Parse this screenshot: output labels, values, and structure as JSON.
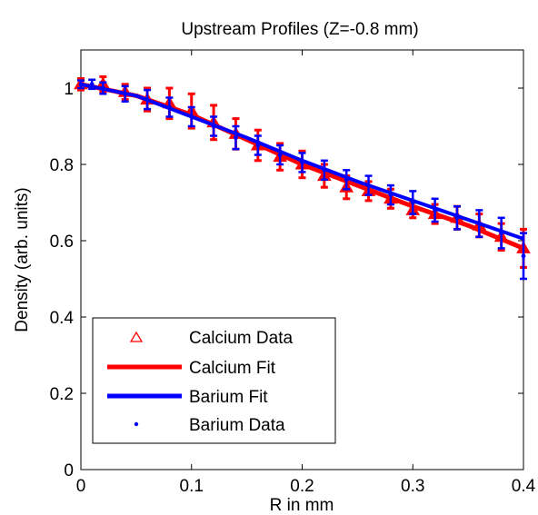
{
  "chart_data": {
    "type": "scatter",
    "title": "Upstream Profiles (Z=-0.8 mm)",
    "xlabel": "R in mm",
    "ylabel": "Density (arb. units)",
    "xlim": [
      0,
      0.4
    ],
    "ylim": [
      0,
      1.1
    ],
    "x_ticks": [
      "0",
      "0.1",
      "0.2",
      "0.3",
      "0.4"
    ],
    "y_ticks": [
      "0",
      "0.2",
      "0.4",
      "0.6",
      "0.8",
      "1"
    ],
    "grid": false,
    "legend_position": "bottom-left",
    "series": [
      {
        "name": "Calcium Data",
        "kind": "points-with-errorbars",
        "marker": "triangle-open",
        "color": "#ff0000",
        "x": [
          0.0,
          0.02,
          0.04,
          0.06,
          0.08,
          0.1,
          0.12,
          0.14,
          0.16,
          0.18,
          0.2,
          0.22,
          0.24,
          0.26,
          0.28,
          0.3,
          0.32,
          0.34,
          0.36,
          0.38,
          0.4
        ],
        "y": [
          1.01,
          1.01,
          0.99,
          0.97,
          0.96,
          0.94,
          0.91,
          0.88,
          0.85,
          0.82,
          0.8,
          0.77,
          0.74,
          0.73,
          0.71,
          0.68,
          0.67,
          0.66,
          0.64,
          0.61,
          0.58
        ],
        "err": [
          0.015,
          0.02,
          0.02,
          0.03,
          0.04,
          0.045,
          0.045,
          0.04,
          0.04,
          0.035,
          0.035,
          0.03,
          0.03,
          0.025,
          0.025,
          0.02,
          0.025,
          0.03,
          0.03,
          0.035,
          0.05
        ]
      },
      {
        "name": "Calcium Fit",
        "kind": "line",
        "color": "#ff0000",
        "x": [
          0.0,
          0.05,
          0.1,
          0.15,
          0.2,
          0.25,
          0.3,
          0.35,
          0.4
        ],
        "y": [
          1.01,
          0.98,
          0.93,
          0.865,
          0.8,
          0.745,
          0.69,
          0.64,
          0.58
        ]
      },
      {
        "name": "Barium Fit",
        "kind": "line",
        "color": "#0000ff",
        "x": [
          0.0,
          0.05,
          0.1,
          0.15,
          0.2,
          0.25,
          0.3,
          0.35,
          0.4
        ],
        "y": [
          1.01,
          0.98,
          0.925,
          0.87,
          0.81,
          0.755,
          0.705,
          0.655,
          0.605
        ]
      },
      {
        "name": "Barium Data",
        "kind": "points-with-errorbars",
        "marker": "dot",
        "color": "#0000ff",
        "x": [
          0.0,
          0.01,
          0.02,
          0.04,
          0.06,
          0.08,
          0.1,
          0.12,
          0.14,
          0.16,
          0.18,
          0.2,
          0.22,
          0.24,
          0.26,
          0.28,
          0.3,
          0.32,
          0.34,
          0.36,
          0.38,
          0.4
        ],
        "y": [
          1.01,
          1.01,
          1.0,
          0.985,
          0.97,
          0.95,
          0.925,
          0.9,
          0.87,
          0.85,
          0.825,
          0.805,
          0.785,
          0.76,
          0.745,
          0.72,
          0.7,
          0.68,
          0.66,
          0.645,
          0.62,
          0.56
        ],
        "err": [
          0.01,
          0.012,
          0.015,
          0.02,
          0.025,
          0.025,
          0.025,
          0.025,
          0.03,
          0.025,
          0.025,
          0.025,
          0.025,
          0.025,
          0.025,
          0.025,
          0.03,
          0.03,
          0.03,
          0.035,
          0.04,
          0.06
        ]
      }
    ]
  }
}
